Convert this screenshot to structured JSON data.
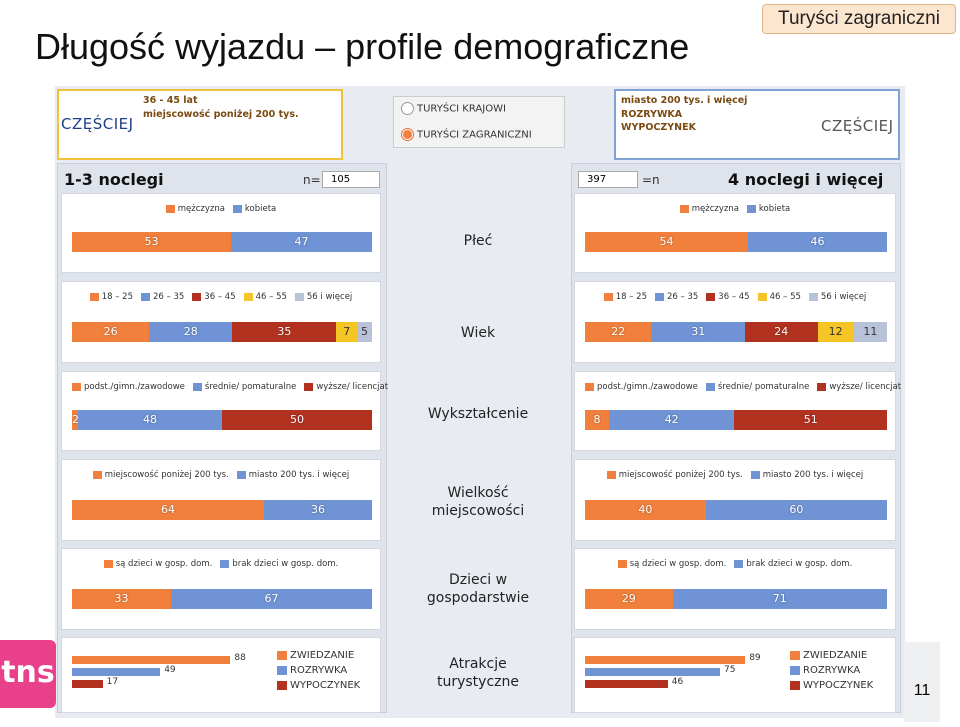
{
  "page": {
    "title": "Długość wyjazdu – profile demograficzne",
    "badge": "Turyści zagraniczni",
    "page_number": "11",
    "logo_text": "tns"
  },
  "segments": {
    "left": {
      "line1": "36 - 45 lat",
      "line2": "miejscowość poniżej 200 tys.",
      "word": "CZĘŚCIEJ"
    },
    "right": {
      "line1": "miasto 200 tys. i więcej",
      "line2": "ROZRYWKA",
      "line3": "WYPOCZYNEK",
      "word": "CZĘŚCIEJ"
    }
  },
  "radio": {
    "option1": "TURYŚCI KRAJOWI",
    "option2": "TURYŚCI ZAGRANICZNI",
    "selected": 2
  },
  "panels": {
    "left": {
      "title": "1-3 noclegi",
      "n_label": "n=",
      "n_value": "105"
    },
    "right": {
      "title": "4 noclegi i więcej",
      "n_label": "=n",
      "n_value": "397"
    }
  },
  "colors": {
    "orange": "#f0803c",
    "blue": "#6f93d4",
    "darkred": "#b3311f",
    "yellow": "#f5c425",
    "lightgray": "#b8c2d8"
  },
  "chart_data": [
    {
      "type": "bar",
      "title": "Płeć",
      "legend": [
        "mężczyzna",
        "kobieta"
      ],
      "series": [
        {
          "name": "1-3 noclegi",
          "values": [
            53,
            47
          ]
        },
        {
          "name": "4 noclegi i więcej",
          "values": [
            54,
            46
          ]
        }
      ]
    },
    {
      "type": "bar",
      "title": "Wiek",
      "legend": [
        "18 – 25",
        "26 – 35",
        "36 – 45",
        "46 – 55",
        "56 i więcej"
      ],
      "series": [
        {
          "name": "1-3 noclegi",
          "values": [
            26,
            28,
            35,
            7,
            5
          ]
        },
        {
          "name": "4 noclegi i więcej",
          "values": [
            22,
            31,
            24,
            12,
            11
          ]
        }
      ]
    },
    {
      "type": "bar",
      "title": "Wykształcenie",
      "legend": [
        "podst./gimn./zawodowe",
        "średnie/ pomaturalne",
        "wyższe/ licencjat"
      ],
      "series": [
        {
          "name": "1-3 noclegi",
          "values": [
            2,
            48,
            50
          ]
        },
        {
          "name": "4 noclegi i więcej",
          "values": [
            8,
            42,
            51
          ]
        }
      ]
    },
    {
      "type": "bar",
      "title": "Wielkość miejscowości",
      "title_lines": [
        "Wielkość",
        "miejscowości"
      ],
      "legend": [
        "miejscowość poniżej 200 tys.",
        "miasto 200 tys. i więcej"
      ],
      "series": [
        {
          "name": "1-3 noclegi",
          "values": [
            64,
            36
          ]
        },
        {
          "name": "4 noclegi i więcej",
          "values": [
            40,
            60
          ]
        }
      ]
    },
    {
      "type": "bar",
      "title": "Dzieci w gospodarstwie",
      "title_lines": [
        "Dzieci w",
        "gospodarstwie"
      ],
      "legend": [
        "są dzieci w gosp. dom.",
        "brak dzieci w gosp. dom."
      ],
      "series": [
        {
          "name": "1-3 noclegi",
          "values": [
            33,
            67
          ]
        },
        {
          "name": "4 noclegi i więcej",
          "values": [
            29,
            71
          ]
        }
      ]
    },
    {
      "type": "bar",
      "title": "Atrakcje turystyczne",
      "title_lines": [
        "Atrakcje",
        "turystyczne"
      ],
      "legend": [
        "ZWIEDZANIE",
        "ROZRYWKA",
        "WYPOCZYNEK"
      ],
      "series": [
        {
          "name": "1-3 noclegi",
          "values": [
            88,
            49,
            17
          ]
        },
        {
          "name": "4 noclegi i więcej",
          "values": [
            89,
            75,
            46
          ]
        }
      ]
    }
  ]
}
